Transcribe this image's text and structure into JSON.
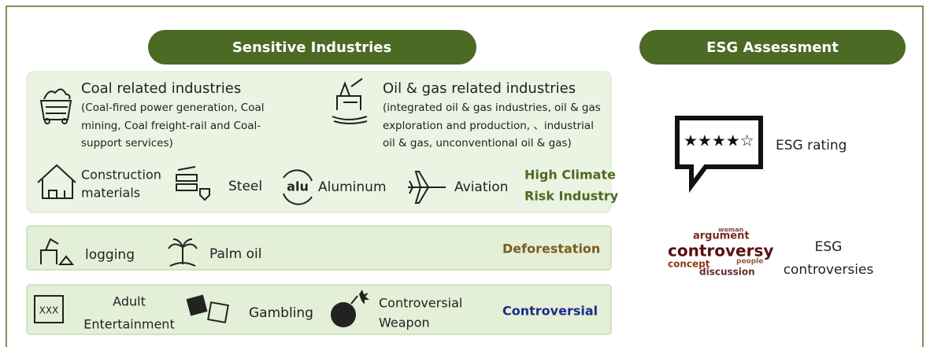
{
  "headers": {
    "sensitive": "Sensitive Industries",
    "esg": "ESG Assessment"
  },
  "climate": {
    "coal": {
      "title": "Coal related industries",
      "details": [
        "(Coal-fired power generation, Coal",
        "mining, Coal freight-rail and Coal-",
        "support services)"
      ]
    },
    "oil": {
      "title": "Oil & gas related industries",
      "details": [
        "(integrated oil & gas industries, oil & gas",
        "exploration and production, 、industrial",
        "oil & gas, unconventional oil & gas)"
      ]
    },
    "construction": [
      "Construction",
      "materials"
    ],
    "steel": "Steel",
    "aluminum_icon": "alu",
    "aluminum": "Aluminum",
    "aviation": "Aviation",
    "label": [
      "High Climate",
      "Risk Industry"
    ]
  },
  "deforestation": {
    "logging": "logging",
    "palm_oil": "Palm oil",
    "label": "Deforestation"
  },
  "controversial": {
    "adult_icon": "XXX",
    "adult": [
      "Adult",
      "Entertainment"
    ],
    "gambling": "Gambling",
    "weapon": [
      "Controversial",
      "Weapon"
    ],
    "label": "Controversial"
  },
  "esg": {
    "rating": "ESG rating",
    "controversies": [
      "ESG",
      "controversies"
    ],
    "word_cloud": [
      "argument",
      "controversy",
      "concept",
      "discussion",
      "people",
      "woman"
    ]
  }
}
